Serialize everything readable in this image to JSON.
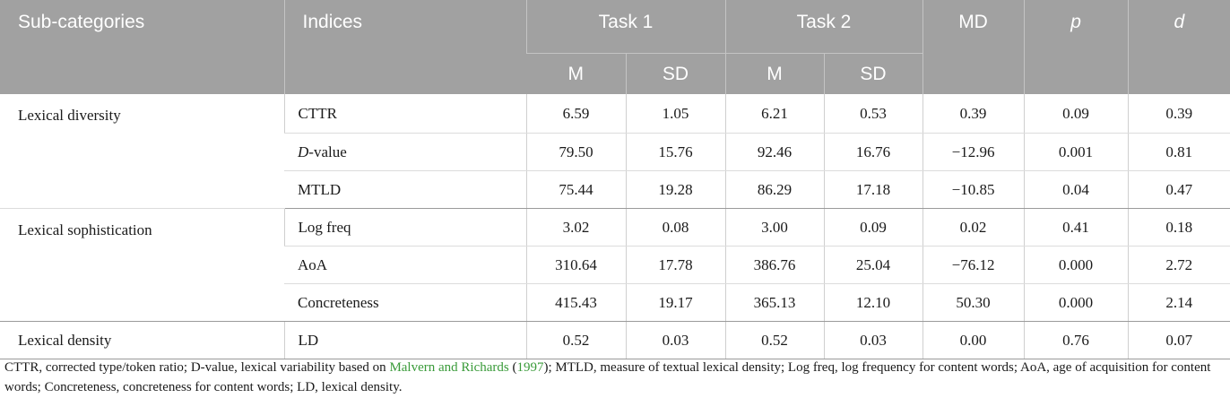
{
  "header": {
    "sub_categories": "Sub-categories",
    "indices": "Indices",
    "task1": "Task 1",
    "task2": "Task 2",
    "md": "MD",
    "p": "p",
    "d": "d",
    "m1": "M",
    "sd1": "SD",
    "m2": "M",
    "sd2": "SD"
  },
  "rows": [
    {
      "category": "Lexical diversity",
      "index": "CTTR",
      "index_italic_prefix": "",
      "m1": "6.59",
      "sd1": "1.05",
      "m2": "6.21",
      "sd2": "0.53",
      "md": "0.39",
      "p": "0.09",
      "d": "0.39"
    },
    {
      "category": "",
      "index": "-value",
      "index_italic_prefix": "D",
      "m1": "79.50",
      "sd1": "15.76",
      "m2": "92.46",
      "sd2": "16.76",
      "md": "−12.96",
      "p": "0.001",
      "d": "0.81"
    },
    {
      "category": "",
      "index": "MTLD",
      "index_italic_prefix": "",
      "m1": "75.44",
      "sd1": "19.28",
      "m2": "86.29",
      "sd2": "17.18",
      "md": "−10.85",
      "p": "0.04",
      "d": "0.47"
    },
    {
      "category": "Lexical sophistication",
      "index": "Log freq",
      "index_italic_prefix": "",
      "m1": "3.02",
      "sd1": "0.08",
      "m2": "3.00",
      "sd2": "0.09",
      "md": "0.02",
      "p": "0.41",
      "d": "0.18"
    },
    {
      "category": "",
      "index": "AoA",
      "index_italic_prefix": "",
      "m1": "310.64",
      "sd1": "17.78",
      "m2": "386.76",
      "sd2": "25.04",
      "md": "−76.12",
      "p": "0.000",
      "d": "2.72"
    },
    {
      "category": "",
      "index": "Concreteness",
      "index_italic_prefix": "",
      "m1": "415.43",
      "sd1": "19.17",
      "m2": "365.13",
      "sd2": "12.10",
      "md": "50.30",
      "p": "0.000",
      "d": "2.14"
    },
    {
      "category": "Lexical density",
      "index": "LD",
      "index_italic_prefix": "",
      "m1": "0.52",
      "sd1": "0.03",
      "m2": "0.52",
      "sd2": "0.03",
      "md": "0.00",
      "p": "0.76",
      "d": "0.07"
    }
  ],
  "footnote": {
    "part1": "CTTR, corrected type/token ratio; D-value, lexical variability based on ",
    "ref_authors": "Malvern and Richards",
    "ref_open": " (",
    "ref_year": "1997",
    "part2": "); MTLD, measure of textual lexical density; Log freq, log frequency for content words; AoA, age of acquisition for content words; Concreteness, concreteness for content words; LD, lexical density."
  }
}
